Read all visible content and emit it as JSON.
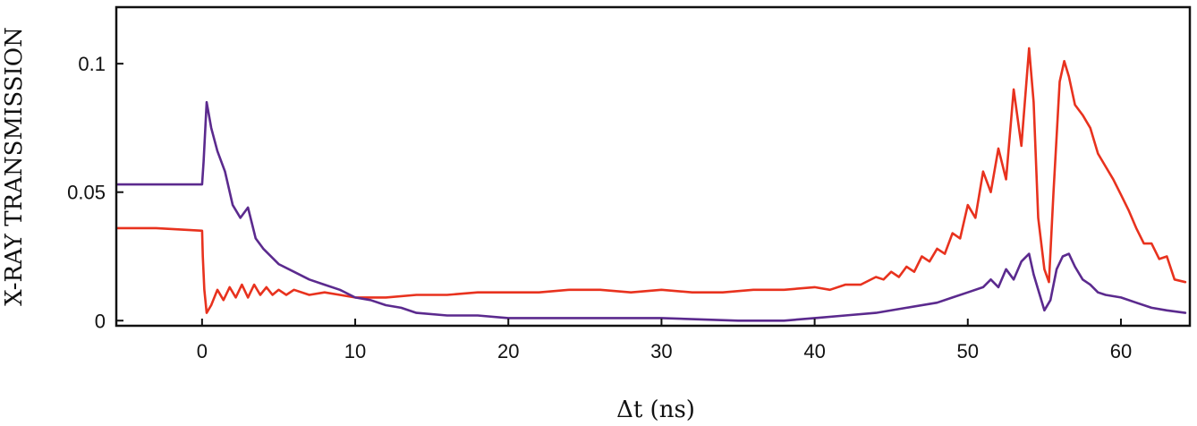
{
  "chart_data": {
    "type": "line",
    "title": "",
    "xlabel": "Δt (ns)",
    "ylabel": "X-RAY TRANSMISSION",
    "xlim": [
      -5.6,
      64.5
    ],
    "ylim": [
      -0.002,
      0.122
    ],
    "xticks": [
      0,
      10,
      20,
      30,
      40,
      50,
      60
    ],
    "xtick_labels": [
      "0",
      "10",
      "20",
      "30",
      "40",
      "50",
      "60"
    ],
    "yticks": [
      0,
      0.05,
      0.1
    ],
    "ytick_labels": [
      "0",
      "0.05",
      "0.1"
    ],
    "grid": false,
    "legend": "none",
    "series": [
      {
        "color": "#e8321e",
        "x": [
          -5.5,
          -3,
          0,
          0.05,
          0.15,
          0.3,
          0.6,
          1.0,
          1.4,
          1.8,
          2.2,
          2.6,
          3.0,
          3.4,
          3.8,
          4.2,
          4.6,
          5.0,
          5.5,
          6,
          7,
          8,
          9,
          10,
          12,
          14,
          16,
          18,
          20,
          22,
          24,
          26,
          28,
          30,
          32,
          34,
          36,
          38,
          40,
          41,
          42,
          43,
          44,
          44.5,
          45,
          45.5,
          46,
          46.5,
          47,
          47.5,
          48,
          48.5,
          49,
          49.5,
          50,
          50.5,
          51,
          51.5,
          52,
          52.5,
          53,
          53.5,
          54,
          54.3,
          54.6,
          55,
          55.3,
          55.6,
          56,
          56.3,
          56.6,
          57,
          57.5,
          58,
          58.5,
          59,
          59.5,
          60,
          60.5,
          61,
          61.5,
          62,
          62.5,
          63,
          63.5,
          64.2
        ],
        "y": [
          0.036,
          0.036,
          0.035,
          0.025,
          0.012,
          0.003,
          0.006,
          0.012,
          0.008,
          0.013,
          0.009,
          0.014,
          0.009,
          0.014,
          0.01,
          0.013,
          0.01,
          0.012,
          0.01,
          0.012,
          0.01,
          0.011,
          0.01,
          0.009,
          0.009,
          0.01,
          0.01,
          0.011,
          0.011,
          0.011,
          0.012,
          0.012,
          0.011,
          0.012,
          0.011,
          0.011,
          0.012,
          0.012,
          0.013,
          0.012,
          0.014,
          0.014,
          0.017,
          0.016,
          0.019,
          0.017,
          0.021,
          0.019,
          0.025,
          0.023,
          0.028,
          0.026,
          0.034,
          0.032,
          0.045,
          0.04,
          0.058,
          0.05,
          0.067,
          0.055,
          0.09,
          0.068,
          0.106,
          0.085,
          0.04,
          0.02,
          0.015,
          0.05,
          0.093,
          0.101,
          0.095,
          0.084,
          0.08,
          0.075,
          0.065,
          0.06,
          0.055,
          0.049,
          0.043,
          0.036,
          0.03,
          0.03,
          0.024,
          0.025,
          0.016,
          0.015
        ]
      },
      {
        "color": "#5b2a8e",
        "x": [
          -5.5,
          -3,
          0,
          0.1,
          0.3,
          0.6,
          1.0,
          1.5,
          2.0,
          2.5,
          3.0,
          3.5,
          4.0,
          5.0,
          6.0,
          7.0,
          8.0,
          9.0,
          10,
          11,
          12,
          13,
          14,
          16,
          18,
          20,
          25,
          30,
          35,
          38,
          40,
          42,
          44,
          46,
          48,
          49,
          50,
          51,
          51.5,
          52,
          52.5,
          53,
          53.5,
          54,
          54.3,
          54.6,
          55,
          55.4,
          55.8,
          56.2,
          56.6,
          57,
          57.5,
          58,
          58.5,
          59,
          60,
          61,
          62,
          63,
          64.2
        ],
        "y": [
          0.053,
          0.053,
          0.053,
          0.062,
          0.085,
          0.075,
          0.066,
          0.058,
          0.045,
          0.04,
          0.044,
          0.032,
          0.028,
          0.022,
          0.019,
          0.016,
          0.014,
          0.012,
          0.009,
          0.008,
          0.006,
          0.005,
          0.003,
          0.002,
          0.002,
          0.001,
          0.001,
          0.001,
          0.0,
          0.0,
          0.001,
          0.002,
          0.003,
          0.005,
          0.007,
          0.009,
          0.011,
          0.013,
          0.016,
          0.013,
          0.02,
          0.016,
          0.023,
          0.026,
          0.018,
          0.012,
          0.004,
          0.008,
          0.02,
          0.025,
          0.026,
          0.021,
          0.016,
          0.014,
          0.011,
          0.01,
          0.009,
          0.007,
          0.005,
          0.004,
          0.003
        ]
      }
    ]
  }
}
